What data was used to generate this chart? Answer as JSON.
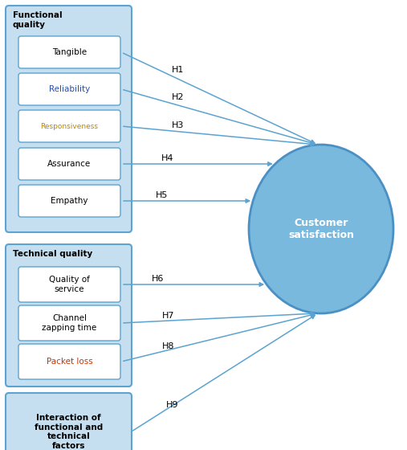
{
  "fig_width": 5.07,
  "fig_height": 5.6,
  "dpi": 100,
  "bg_color": "#ffffff",
  "box_fill": "#c5dff0",
  "box_edge": "#5ba3d0",
  "inner_box_fill": "#ffffff",
  "inner_box_edge": "#5ba3d0",
  "arrow_color": "#5ba3d0",
  "circle_fill": "#7ab9de",
  "circle_edge": "#4a90c4",
  "text_color": "#000000",
  "group1_label": "Functional\nquality",
  "group1_items": [
    "Tangible",
    "Reliability",
    "Responsiveness",
    "Assurance",
    "Empathy"
  ],
  "group2_label": "Technical quality",
  "group2_items": [
    "Quality of\nservice",
    "Channel\nzapping time",
    "Packet loss"
  ],
  "group3_label": "Interaction of\nfunctional and\ntechnical\nfactors",
  "hypotheses": [
    "H1",
    "H2",
    "H3",
    "H4",
    "H5",
    "H6",
    "H7",
    "H8",
    "H9"
  ],
  "circle_label": "Customer\nsatisfaction",
  "responsiveness_color": "#b8860b",
  "packet_loss_color": "#cc3300",
  "reliability_color": "#2b4ea8",
  "assurance_color": "#000080"
}
